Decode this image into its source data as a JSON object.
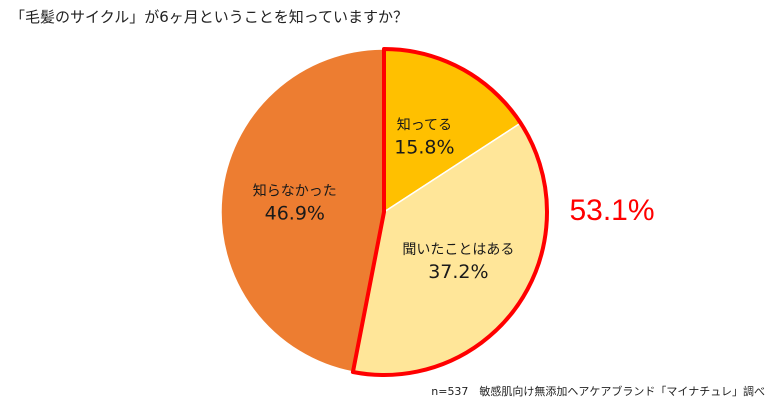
{
  "title": "「毛髪のサイクル」が6ヶ月ということを知っていますか？",
  "footnote": "n=537　敏感肌向け無添加ヘアケアブランド「マイナチュレ」調べ",
  "highlight": {
    "total_text": "53.1%",
    "color": "#ff0000"
  },
  "chart_data": {
    "type": "pie",
    "title": "「毛髪のサイクル」が6ヶ月ということを知っていますか？",
    "start": "12 o'clock",
    "direction": "clockwise",
    "slices": [
      {
        "label": "知ってる",
        "value": 15.8,
        "value_text": "15.8%",
        "color": "#ffc000",
        "highlighted": true
      },
      {
        "label": "聞いたことはある",
        "value": 37.2,
        "value_text": "37.2%",
        "color": "#ffe699",
        "highlighted": true
      },
      {
        "label": "知らなかった",
        "value": 46.9,
        "value_text": "46.9%",
        "color": "#ed7d31",
        "highlighted": false
      }
    ],
    "highlight_total": 53.1
  }
}
